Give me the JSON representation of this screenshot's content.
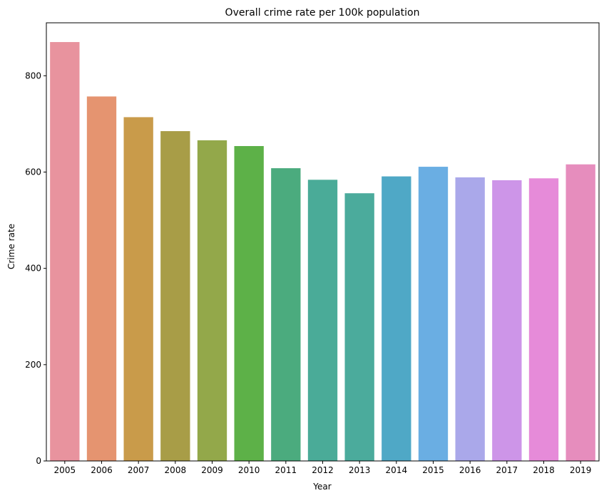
{
  "chart_data": {
    "type": "bar",
    "title": "Overall crime rate per 100k population",
    "xlabel": "Year",
    "ylabel": "Crime rate",
    "categories": [
      "2005",
      "2006",
      "2007",
      "2008",
      "2009",
      "2010",
      "2011",
      "2012",
      "2013",
      "2014",
      "2015",
      "2016",
      "2017",
      "2018",
      "2019"
    ],
    "values": [
      870,
      757,
      714,
      685,
      666,
      654,
      608,
      584,
      556,
      591,
      611,
      589,
      583,
      587,
      616
    ],
    "colors": [
      "#e8939e",
      "#e59470",
      "#c99b4a",
      "#a89d47",
      "#93a84a",
      "#5db148",
      "#4bab7e",
      "#4aab98",
      "#4bab9c",
      "#4fa8c6",
      "#6aaee3",
      "#aaa8ea",
      "#cd95e8",
      "#e68bd9",
      "#e68dbd"
    ],
    "ylim": [
      0,
      910
    ],
    "yticks": [
      0,
      200,
      400,
      600,
      800
    ],
    "grid": false,
    "legend": "none"
  }
}
